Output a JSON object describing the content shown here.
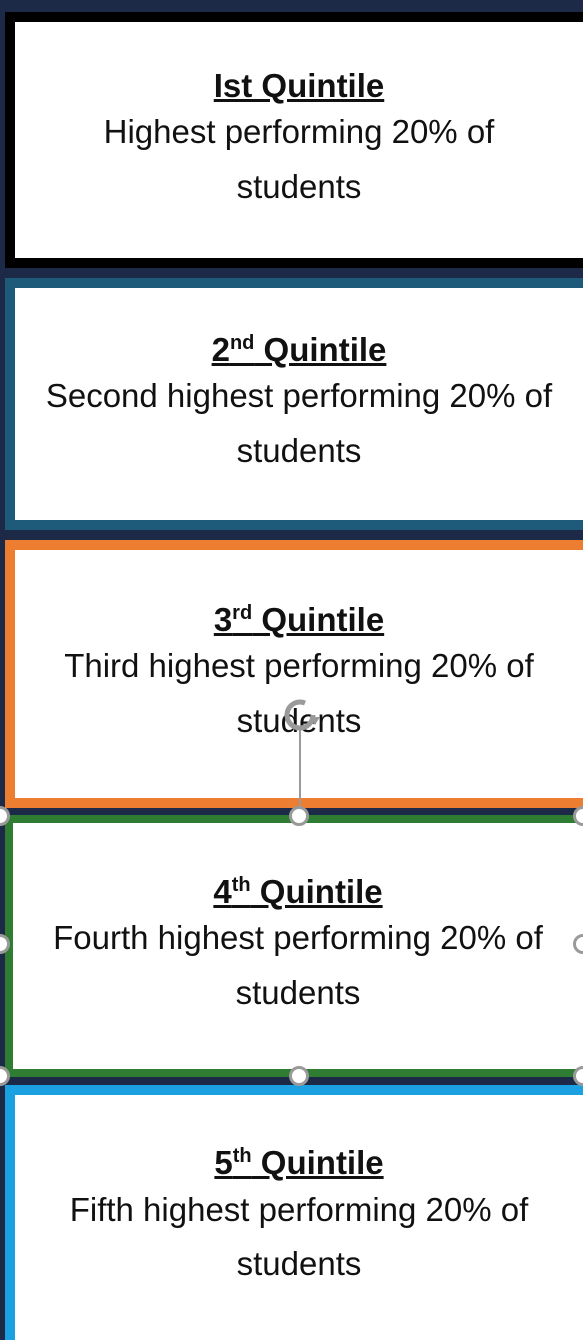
{
  "boxes": [
    {
      "title": {
        "lead": "Ist Quintile"
      },
      "description": "Highest performing 20% of students"
    },
    {
      "title": {
        "lead": "2",
        "sup": "nd",
        "tail": " Quintile"
      },
      "description": "Second highest performing 20% of students"
    },
    {
      "title": {
        "lead": "3",
        "sup": "rd",
        "tail": " Quintile"
      },
      "description": "Third highest performing 20% of students"
    },
    {
      "title": {
        "lead": "4",
        "sup": "th",
        "tail": " Quintile"
      },
      "description": "Fourth highest performing 20% of students"
    },
    {
      "title": {
        "lead": "5",
        "sup": "th",
        "tail": " Quintile"
      },
      "description": "Fifth highest performing 20% of students"
    }
  ]
}
